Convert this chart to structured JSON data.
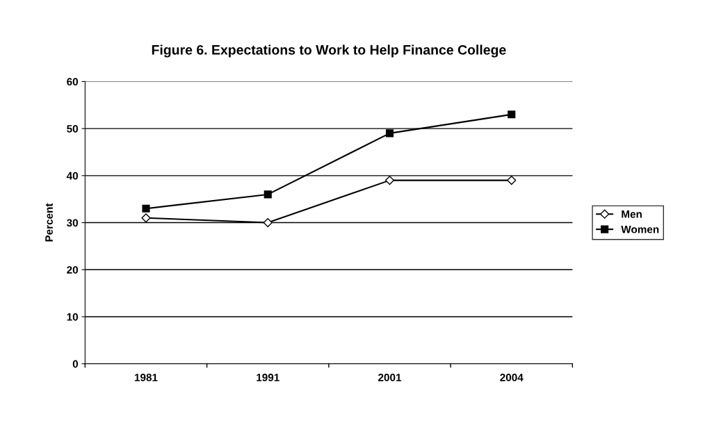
{
  "chart_data": {
    "type": "line",
    "title": "Figure 6. Expectations to Work to Help Finance College",
    "ylabel": "Percent",
    "categories": [
      "1981",
      "1991",
      "2001",
      "2004"
    ],
    "series": [
      {
        "name": "Men",
        "color": "#000000",
        "marker": "diamond",
        "values": [
          31,
          30,
          39,
          39
        ]
      },
      {
        "name": "Women",
        "color": "#000000",
        "marker": "square",
        "values": [
          33,
          36,
          49,
          53
        ]
      }
    ],
    "ylim": [
      0,
      60
    ],
    "yticks": [
      0,
      10,
      20,
      30,
      40,
      50,
      60
    ],
    "grid": "y",
    "legend": "right",
    "line_style": "solid"
  }
}
